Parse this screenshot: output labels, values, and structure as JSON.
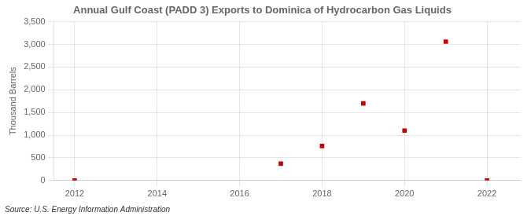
{
  "chart_data": {
    "type": "scatter",
    "title": "Annual Gulf Coast (PADD 3) Exports to Dominica of Hydrocarbon Gas Liquids",
    "y_label": "Thousand Barrels",
    "annotations": [
      "Source: U.S. Energy Information Administration"
    ],
    "x": [
      2012,
      2017,
      2018,
      2019,
      2020,
      2021,
      2022
    ],
    "values": [
      0,
      370,
      760,
      1700,
      1100,
      3060,
      0
    ],
    "color": "#cc0000",
    "marker": "square",
    "xlim": [
      2011.5,
      2022.8
    ],
    "xticks": [
      2012,
      2014,
      2016,
      2018,
      2020,
      2022
    ],
    "ylim": [
      0,
      3500
    ],
    "yticks": [
      0,
      500,
      {
        "value": 1000,
        "label": "1,000"
      },
      {
        "value": 1500,
        "label": "1,500"
      },
      {
        "value": 2000,
        "label": "2,000"
      },
      {
        "value": 2500,
        "label": "2,500"
      },
      {
        "value": 3000,
        "label": "3,000"
      },
      {
        "value": 3500,
        "label": "3,500"
      }
    ],
    "grid": true
  }
}
